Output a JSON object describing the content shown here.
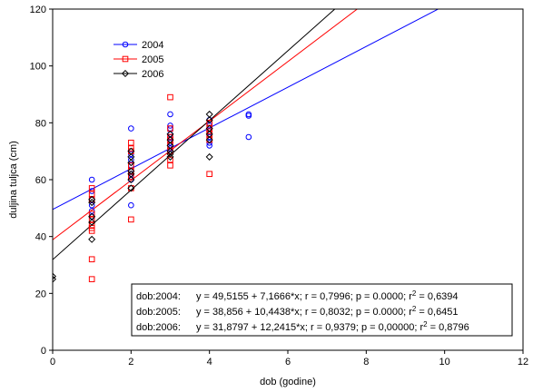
{
  "chart_data": {
    "type": "scatter",
    "title": "",
    "xlabel": "dob (godine)",
    "ylabel": "duljina tuljca (cm)",
    "xlim": [
      0,
      12
    ],
    "ylim": [
      0,
      120
    ],
    "xticks": [
      0,
      2,
      4,
      6,
      8,
      10,
      12
    ],
    "yticks": [
      0,
      20,
      40,
      60,
      80,
      100,
      120
    ],
    "grid": false,
    "legend_position": "top-left",
    "series": [
      {
        "name": "2004",
        "color": "#0000ff",
        "marker": "circle",
        "intercept": 49.5155,
        "slope": 7.1666,
        "points": [
          [
            1,
            60
          ],
          [
            1,
            56
          ],
          [
            1,
            53
          ],
          [
            1,
            51
          ],
          [
            1,
            49
          ],
          [
            1,
            47
          ],
          [
            2,
            78
          ],
          [
            2,
            69
          ],
          [
            2,
            67
          ],
          [
            2,
            65
          ],
          [
            2,
            63
          ],
          [
            2,
            62
          ],
          [
            2,
            61
          ],
          [
            2,
            60
          ],
          [
            2,
            51
          ],
          [
            3,
            83
          ],
          [
            3,
            79
          ],
          [
            3,
            78
          ],
          [
            3,
            76
          ],
          [
            3,
            75
          ],
          [
            3,
            73
          ],
          [
            3,
            71
          ],
          [
            3,
            70
          ],
          [
            4,
            81
          ],
          [
            4,
            79
          ],
          [
            4,
            77
          ],
          [
            4,
            75
          ],
          [
            4,
            73
          ],
          [
            4,
            72
          ],
          [
            5,
            83
          ],
          [
            5,
            82.5
          ],
          [
            5,
            75
          ]
        ]
      },
      {
        "name": "2005",
        "color": "#ff0000",
        "marker": "square",
        "intercept": 38.856,
        "slope": 10.4438,
        "points": [
          [
            1,
            57
          ],
          [
            1,
            55
          ],
          [
            1,
            53
          ],
          [
            1,
            48
          ],
          [
            1,
            46
          ],
          [
            1,
            44
          ],
          [
            1,
            43
          ],
          [
            1,
            42
          ],
          [
            1,
            32
          ],
          [
            1,
            25
          ],
          [
            2,
            73
          ],
          [
            2,
            71
          ],
          [
            2,
            70
          ],
          [
            2,
            65
          ],
          [
            2,
            63
          ],
          [
            2,
            61
          ],
          [
            2,
            57
          ],
          [
            2,
            46
          ],
          [
            3,
            89
          ],
          [
            3,
            78
          ],
          [
            3,
            75
          ],
          [
            3,
            74
          ],
          [
            3,
            72
          ],
          [
            3,
            70
          ],
          [
            3,
            67
          ],
          [
            3,
            65
          ],
          [
            4,
            80
          ],
          [
            4,
            78
          ],
          [
            4,
            77
          ],
          [
            4,
            76
          ],
          [
            4,
            74
          ],
          [
            4,
            62
          ]
        ]
      },
      {
        "name": "2006",
        "color": "#000000",
        "marker": "diamond",
        "intercept": 31.8797,
        "slope": 12.2415,
        "points": [
          [
            0,
            26
          ],
          [
            0,
            25
          ],
          [
            1,
            53
          ],
          [
            1,
            52
          ],
          [
            1,
            47
          ],
          [
            1,
            45
          ],
          [
            1,
            39
          ],
          [
            2,
            70
          ],
          [
            2,
            68
          ],
          [
            2,
            66
          ],
          [
            2,
            63
          ],
          [
            2,
            62
          ],
          [
            2,
            60
          ],
          [
            2,
            57
          ],
          [
            3,
            76
          ],
          [
            3,
            74
          ],
          [
            3,
            72
          ],
          [
            3,
            70
          ],
          [
            3,
            69
          ],
          [
            3,
            68
          ],
          [
            4,
            83
          ],
          [
            4,
            81
          ],
          [
            4,
            78
          ],
          [
            4,
            76
          ],
          [
            4,
            74
          ],
          [
            4,
            68
          ]
        ]
      }
    ],
    "annotations": [
      {
        "label": "dob:2004:",
        "equation": "y = 49,5155 + 7,1666*x; r = 0,7996; p = 0.0000; r",
        "sup": "2",
        "tail": " = 0,6394"
      },
      {
        "label": "dob:2005:",
        "equation": "y = 38,856 + 10,4438*x; r = 0,8032; p = 0.0000; r",
        "sup": "2",
        "tail": " = 0,6451"
      },
      {
        "label": "dob:2006:",
        "equation": "y = 31,8797 + 12,2415*x; r = 0,9379; p = 0,00000; r",
        "sup": "2",
        "tail": " = 0,8796"
      }
    ]
  }
}
